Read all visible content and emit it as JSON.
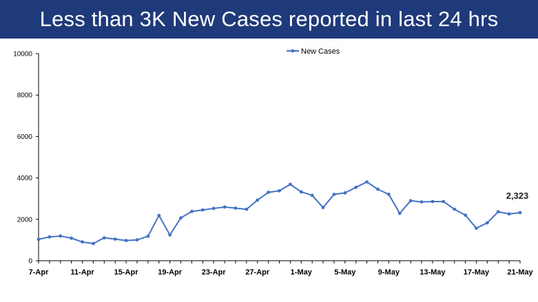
{
  "header": {
    "title": "Less than 3K New Cases reported in last 24 hrs"
  },
  "colors": {
    "banner": "#1f3a7a",
    "series": "#4472c4",
    "axis": "#000000"
  },
  "chart_data": {
    "type": "line",
    "title": "Less than 3K New Cases reported in last 24 hrs",
    "xlabel": "",
    "ylabel": "",
    "ylim": [
      0,
      10000
    ],
    "yticks": [
      0,
      2000,
      4000,
      6000,
      8000,
      10000
    ],
    "ytick_labels": [
      "0",
      "2000",
      "4000",
      "6000",
      "8000",
      "10000"
    ],
    "x_tick_labels": [
      "7-Apr",
      "11-Apr",
      "15-Apr",
      "19-Apr",
      "23-Apr",
      "27-Apr",
      "1-May",
      "5-May",
      "9-May",
      "13-May",
      "17-May",
      "21-May"
    ],
    "x_tick_every": 4,
    "legend": {
      "position": "top-center",
      "entries": [
        "New Cases"
      ]
    },
    "grid": false,
    "annotations": [
      {
        "index": 44,
        "text": "2,323"
      }
    ],
    "series": [
      {
        "name": "New Cases",
        "values": [
          1033,
          1150,
          1194,
          1088,
          907,
          829,
          1108,
          1043,
          975,
          1007,
          1183,
          2183,
          1247,
          2067,
          2380,
          2451,
          2527,
          2593,
          2541,
          2483,
          2927,
          3303,
          3377,
          3688,
          3324,
          3157,
          2568,
          3205,
          3275,
          3545,
          3805,
          3451,
          3207,
          2288,
          2897,
          2841,
          2858,
          2858,
          2487,
          2202,
          1569,
          1829,
          2364,
          2259,
          2323
        ]
      }
    ]
  }
}
